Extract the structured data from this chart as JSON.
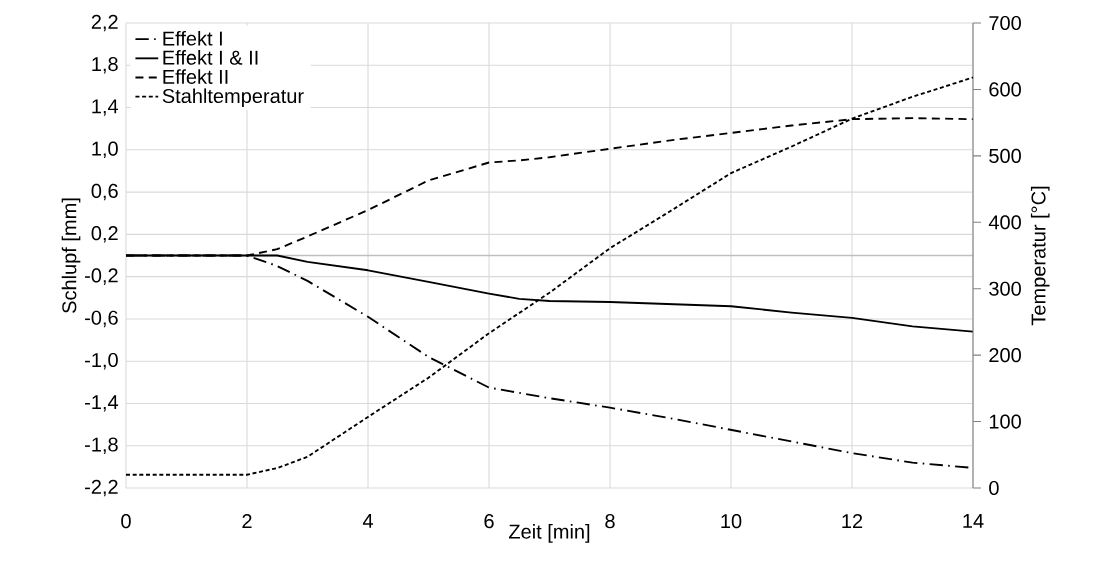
{
  "chart_data": {
    "type": "line",
    "xlabel": "Zeit [min]",
    "ylabel": "Schlupf [mm]",
    "y2label": "Temperatur [°C]",
    "x": [
      0,
      1,
      2,
      2.5,
      3,
      4,
      5,
      6,
      6.5,
      7,
      8,
      9,
      10,
      11,
      12,
      13,
      14
    ],
    "series": [
      {
        "name": "Effekt I",
        "color": "#000000",
        "line_style": "dashdot",
        "values": [
          0,
          0,
          0,
          -0.1,
          -0.24,
          -0.58,
          -0.96,
          -1.25,
          -1.3,
          -1.35,
          -1.44,
          -1.54,
          -1.65,
          -1.76,
          -1.87,
          -1.96,
          -2.01
        ]
      },
      {
        "name": "Effekt I & II",
        "color": "#000000",
        "line_style": "solid",
        "values": [
          0,
          0,
          0,
          0,
          -0.06,
          -0.14,
          -0.25,
          -0.36,
          -0.41,
          -0.43,
          -0.44,
          -0.46,
          -0.48,
          -0.54,
          -0.59,
          -0.67,
          -0.72
        ]
      },
      {
        "name": "Effekt II",
        "color": "#000000",
        "line_style": "dashed",
        "values": [
          0,
          0,
          0,
          0.06,
          0.18,
          0.43,
          0.71,
          0.88,
          0.9,
          0.93,
          1.01,
          1.09,
          1.16,
          1.23,
          1.29,
          1.3,
          1.29
        ]
      },
      {
        "name": "Stahltemperatur",
        "color": "#000000",
        "line_style": "dotted",
        "axis": "y2",
        "x": [
          0,
          1,
          2,
          2.5,
          3,
          4,
          5,
          6,
          7,
          8,
          9,
          10,
          11,
          12,
          13,
          14
        ],
        "values": [
          20,
          20,
          20,
          30,
          47,
          107,
          166,
          233,
          294,
          361,
          417,
          474,
          514,
          556,
          589,
          618
        ]
      }
    ],
    "xlim": [
      0,
      14
    ],
    "xticks": [
      0,
      2,
      4,
      6,
      8,
      10,
      12,
      14
    ],
    "ylim": [
      -2.2,
      2.2
    ],
    "yticks": [
      {
        "value": -2.2,
        "label": "-2,2"
      },
      {
        "value": -1.8,
        "label": "-1,8"
      },
      {
        "value": -1.4,
        "label": "-1,4"
      },
      {
        "value": -1.0,
        "label": "-1,0"
      },
      {
        "value": -0.6,
        "label": "-0,6"
      },
      {
        "value": -0.2,
        "label": "-0,2"
      },
      {
        "value": 0.2,
        "label": "0,2"
      },
      {
        "value": 0.6,
        "label": "0,6"
      },
      {
        "value": 1.0,
        "label": "1,0"
      },
      {
        "value": 1.4,
        "label": "1,4"
      },
      {
        "value": 1.8,
        "label": "1,8"
      },
      {
        "value": 2.2,
        "label": "2,2"
      }
    ],
    "y2lim": [
      0,
      700
    ],
    "y2ticks": [
      0,
      100,
      200,
      300,
      400,
      500,
      600,
      700
    ],
    "ref_lines": [
      {
        "axis": "y",
        "value": 0,
        "color": "#bfbfbf"
      }
    ],
    "grid": true,
    "legend": "top left"
  }
}
